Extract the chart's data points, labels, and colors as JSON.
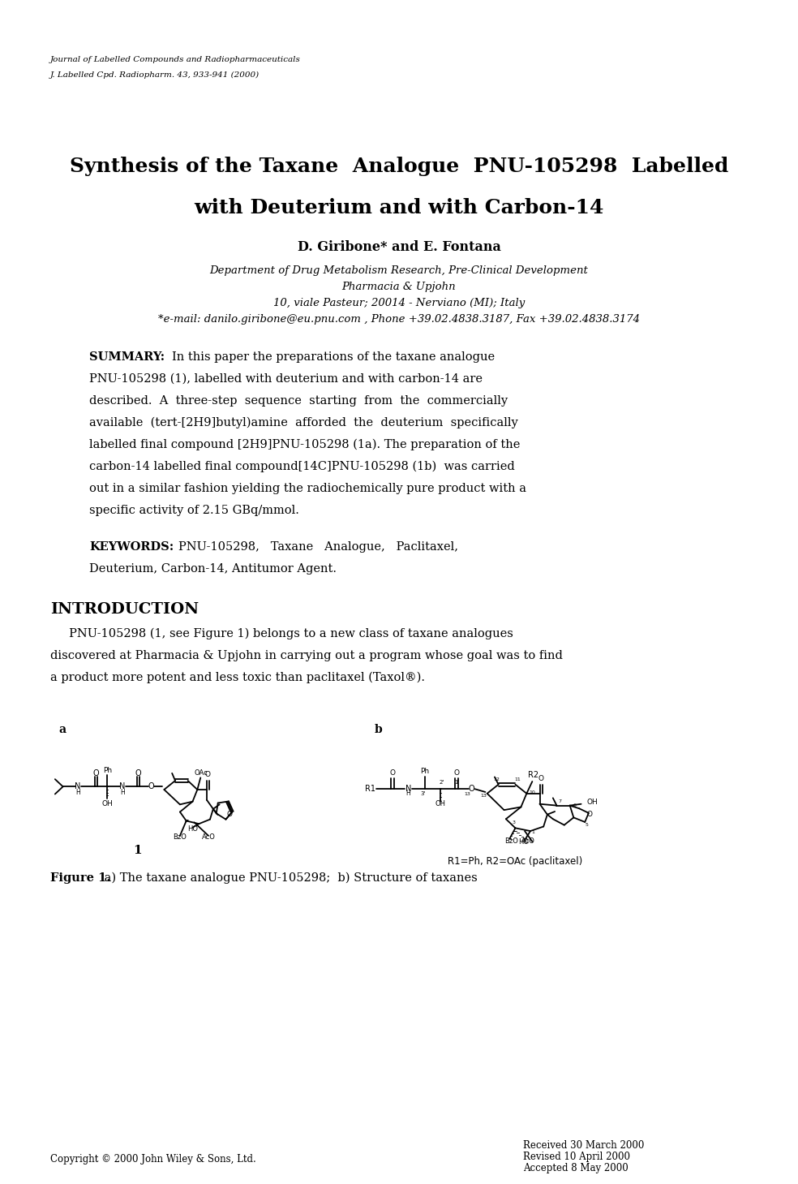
{
  "journal_line1": "Journal of Labelled Compounds and Radiopharmaceuticals",
  "journal_line2": "J. Labelled Cpd. Radiopharm. 43, 933-941 (2000)",
  "title_line1": "Synthesis of the Taxane  Analogue  PNU-105298  Labelled",
  "title_line2": "with Deuterium and with Carbon-14",
  "authors": "D. Giribone* and E. Fontana",
  "affil1": "Department of Drug Metabolism Research, Pre-Clinical Development",
  "affil2": "Pharmacia & Upjohn",
  "affil3": "10, viale Pasteur; 20014 - Nerviano (MI); Italy",
  "affil4": "*e-mail: danilo.giribone@eu.pnu.com , Phone +39.02.4838.3187, Fax +39.02.4838.3174",
  "summary_label": "SUMMARY:",
  "keywords_label": "KEYWORDS:",
  "intro_header": "INTRODUCTION",
  "figure_caption_bold": "Figure 1.",
  "figure_caption_rest": " a) The taxane analogue PNU-105298;  b) Structure of taxanes",
  "copyright": "Copyright © 2000 John Wiley & Sons, Ltd.",
  "received_line1": "Received 30 March 2000",
  "received_line2": "Revised 10 April 2000",
  "received_line3": "Accepted 8 May 2000",
  "background_color": "#ffffff",
  "text_color": "#000000"
}
